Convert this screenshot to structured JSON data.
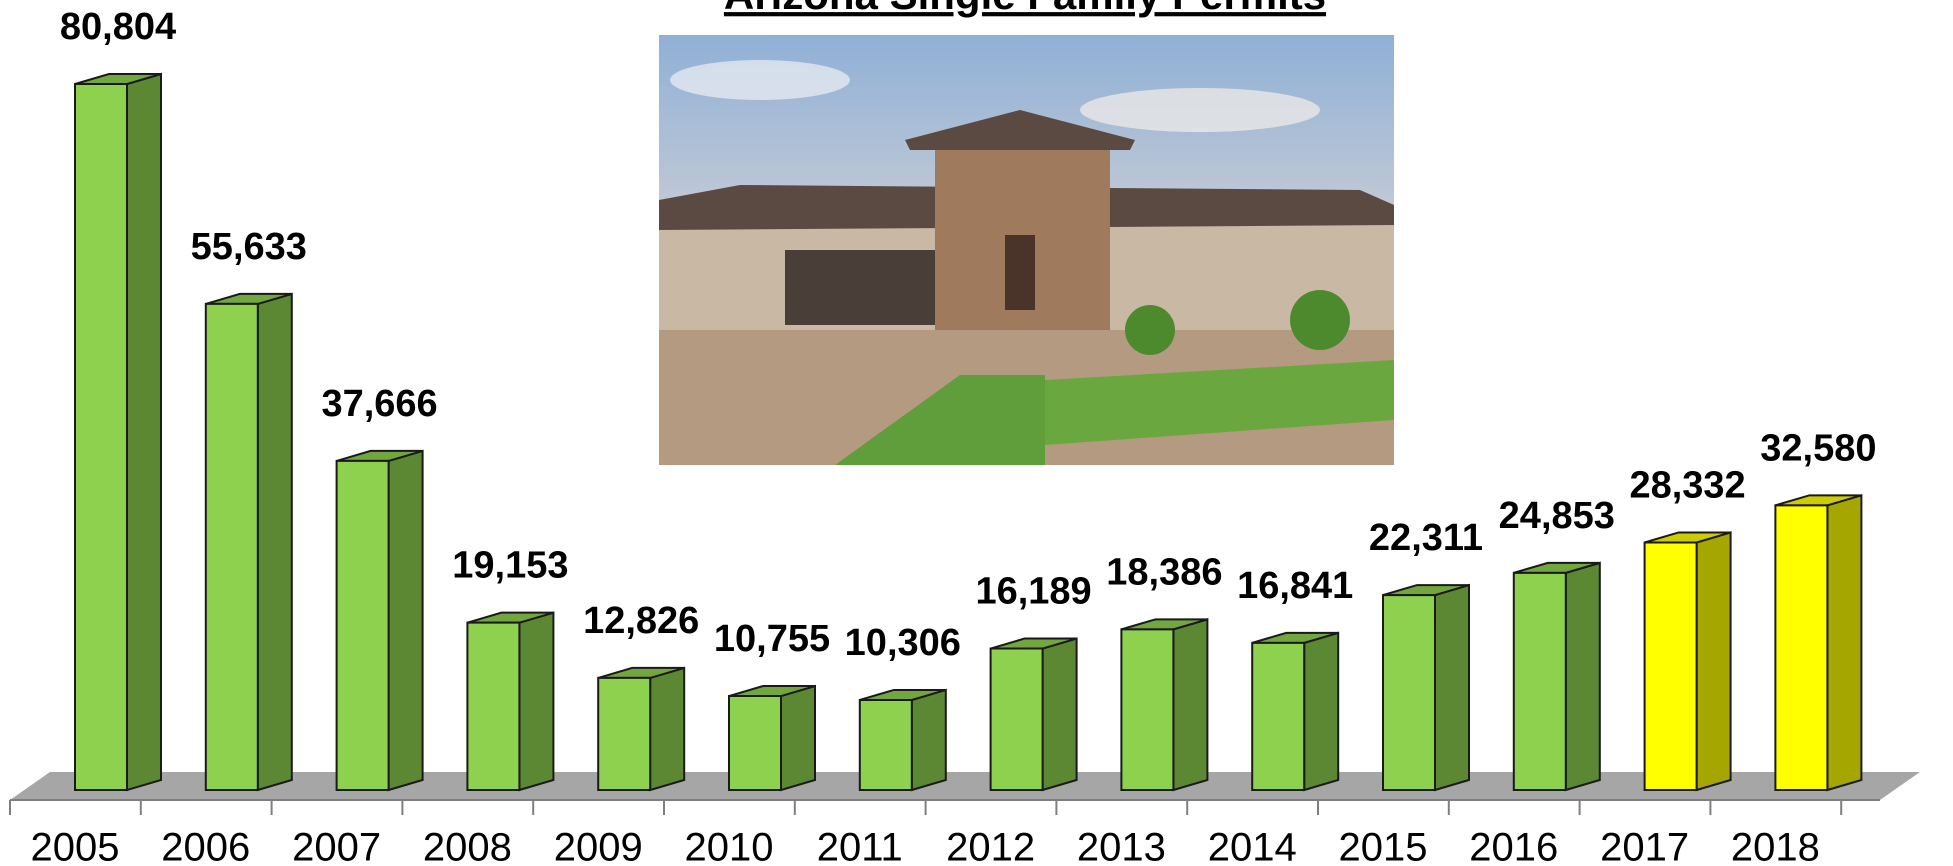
{
  "chart_data": {
    "type": "bar3d",
    "title": "Arizona Single Family Permits",
    "categories": [
      "2005",
      "2006",
      "2007",
      "2008",
      "2009",
      "2010",
      "2011",
      "2012",
      "2013",
      "2014",
      "2015",
      "2016",
      "2017",
      "2018"
    ],
    "values": [
      80804,
      55633,
      37666,
      19153,
      12826,
      10755,
      10306,
      16189,
      18386,
      16841,
      22311,
      24853,
      28332,
      32580
    ],
    "value_labels": [
      "80,804",
      "55,633",
      "37,666",
      "19,153",
      "12,826",
      "10,755",
      "10,306",
      "16,189",
      "18,386",
      "16,841",
      "22,311",
      "24,853",
      "28,332",
      "32,580"
    ],
    "colors": [
      "#8ed14f",
      "#8ed14f",
      "#8ed14f",
      "#8ed14f",
      "#8ed14f",
      "#8ed14f",
      "#8ed14f",
      "#8ed14f",
      "#8ed14f",
      "#8ed14f",
      "#8ed14f",
      "#8ed14f",
      "#ffff00",
      "#ffff00"
    ]
  }
}
